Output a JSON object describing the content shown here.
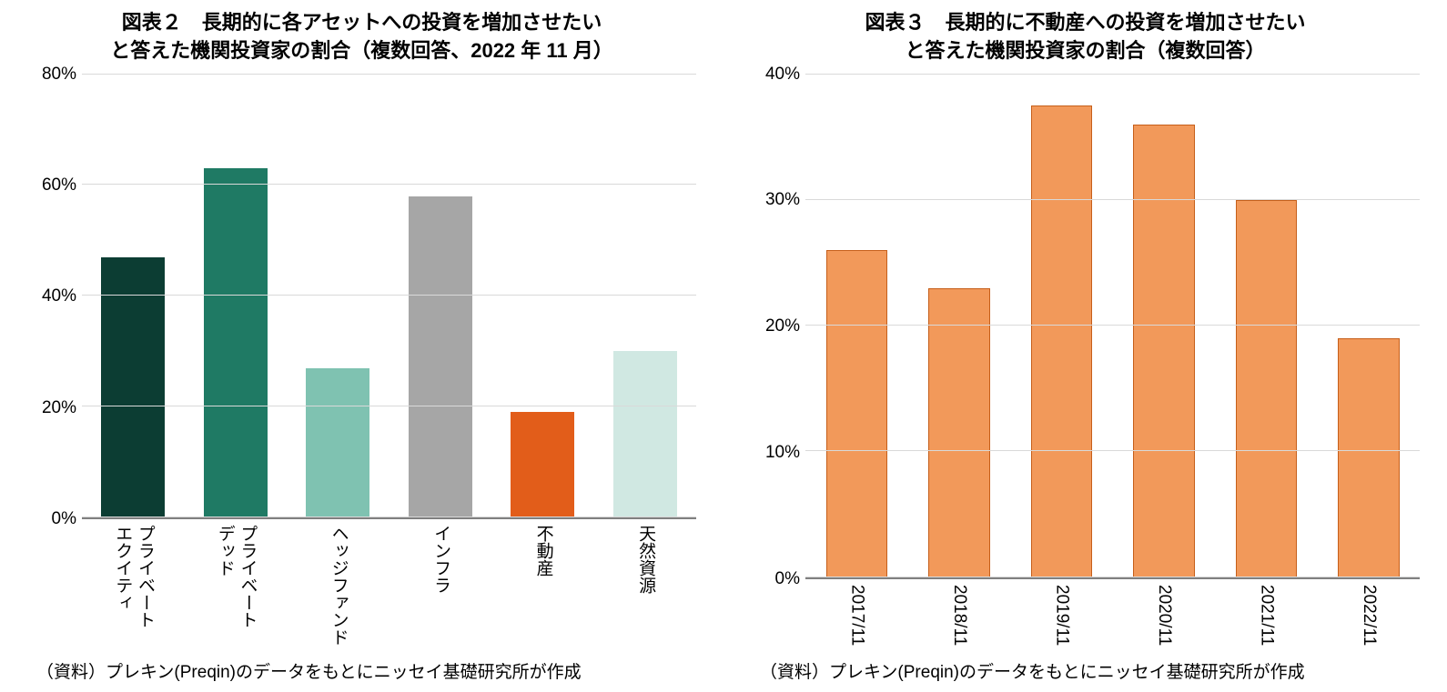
{
  "chart2": {
    "type": "bar",
    "title_line1": "図表２　長期的に各アセットへの投資を増加させたい",
    "title_line2": "と答えた機関投資家の割合（複数回答、2022 年 11 月）",
    "title_fontsize": 22,
    "categories": [
      "プライベート\nエクイティ",
      "プライベート\nデッド",
      "ヘッジファンド",
      "インフラ",
      "不動産",
      "天然資源"
    ],
    "values": [
      47,
      63,
      27,
      58,
      19,
      30
    ],
    "bar_colors": [
      "#0c3d33",
      "#1f7a64",
      "#7fc2b1",
      "#a6a6a6",
      "#e25d1a",
      "#d0e8e2"
    ],
    "ylim": [
      0,
      80
    ],
    "ytick_step": 20,
    "ytick_labels": [
      "0%",
      "20%",
      "40%",
      "60%",
      "80%"
    ],
    "background_color": "#ffffff",
    "grid_color": "#d9d9d9",
    "axis_label_fontsize": 19,
    "xlabel_fontsize": 19,
    "bar_width_pct": 62,
    "source": "（資料）プレキン(Preqin)のデータをもとにニッセイ基礎研究所が作成",
    "source_fontsize": 19
  },
  "chart3": {
    "type": "bar",
    "title_line1": "図表３　長期的に不動産への投資を増加させたい",
    "title_line2": "と答えた機関投資家の割合（複数回答）",
    "title_fontsize": 22,
    "categories": [
      "2017/11",
      "2018/11",
      "2019/11",
      "2020/11",
      "2021/11",
      "2022/11"
    ],
    "values": [
      26,
      23,
      37.5,
      36,
      30,
      19
    ],
    "bar_colors": [
      "#f2995a",
      "#f2995a",
      "#f2995a",
      "#f2995a",
      "#f2995a",
      "#f2995a"
    ],
    "bar_border": "#c65f1a",
    "ylim": [
      0,
      40
    ],
    "ytick_step": 10,
    "ytick_labels": [
      "0%",
      "10%",
      "20%",
      "30%",
      "40%"
    ],
    "background_color": "#ffffff",
    "grid_color": "#d9d9d9",
    "axis_label_fontsize": 19,
    "xlabel_fontsize": 19,
    "bar_width_pct": 60,
    "source": "（資料）プレキン(Preqin)のデータをもとにニッセイ基礎研究所が作成",
    "source_fontsize": 19
  }
}
